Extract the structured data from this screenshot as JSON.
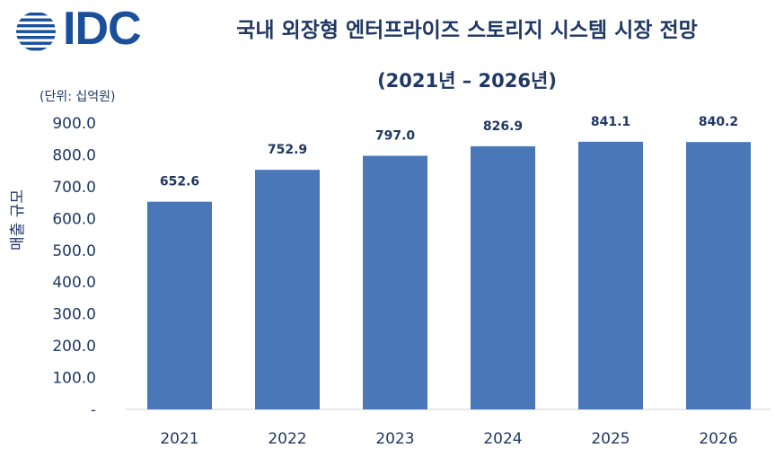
{
  "logo": {
    "text": "IDC"
  },
  "chart_data": {
    "type": "bar",
    "title": "국내 외장형 엔터프라이즈 스토리지 시스템 시장 전망",
    "subtitle": "(2021년 – 2026년)",
    "unit_note": "(단위: 십억원)",
    "ylabel": "매출 규모",
    "xlabel": "",
    "categories": [
      "2021",
      "2022",
      "2023",
      "2024",
      "2025",
      "2026"
    ],
    "values": [
      652.6,
      752.9,
      797.0,
      826.9,
      841.1,
      840.2
    ],
    "data_labels": [
      "652.6",
      "752.9",
      "797.0",
      "826.9",
      "841.1",
      "840.2"
    ],
    "ylim": [
      0,
      900
    ],
    "yticks": [
      "-",
      "100.0",
      "200.0",
      "300.0",
      "400.0",
      "500.0",
      "600.0",
      "700.0",
      "800.0",
      "900.0"
    ],
    "bar_color": "#4a77b8",
    "grid": false,
    "legend": "none"
  }
}
